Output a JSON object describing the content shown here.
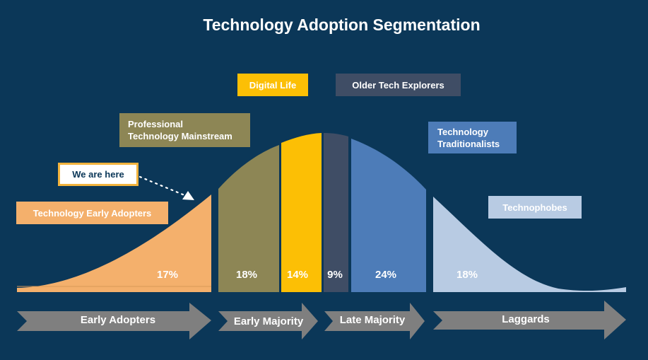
{
  "title": "Technology Adoption Segmentation",
  "segment_labels": {
    "digital_life": "Digital Life",
    "older_tech_explorers": "Older Tech Explorers",
    "professional_mainstream_line1": "Professional",
    "professional_mainstream_line2": "Technology Mainstream",
    "traditionalists_line1": "Technology",
    "traditionalists_line2": "Traditionalists",
    "technophobes": "Technophobes",
    "early_adopters_tech": "Technology Early Adopters",
    "we_are_here": "We are here"
  },
  "colors": {
    "background": "#0b3758",
    "early_adopters": "#f4b06c",
    "professional_mainstream": "#8d8655",
    "digital_life": "#fcbf05",
    "older_tech_explorers": "#3f4d65",
    "traditionalists": "#4d7cb8",
    "technophobes": "#b8cbe3",
    "arrow": "#7f7f7f"
  },
  "chart_data": {
    "type": "area",
    "title": "Technology Adoption Segmentation",
    "segments": [
      {
        "name": "Technology Early Adopters",
        "percent": 17,
        "label": "17%"
      },
      {
        "name": "Professional Technology Mainstream",
        "percent": 18,
        "label": "18%"
      },
      {
        "name": "Digital Life",
        "percent": 14,
        "label": "14%"
      },
      {
        "name": "Older Tech Explorers",
        "percent": 9,
        "label": "9%"
      },
      {
        "name": "Technology Traditionalists",
        "percent": 24,
        "label": "24%"
      },
      {
        "name": "Technophobes",
        "percent": 18,
        "label": "18%"
      }
    ],
    "phases": [
      "Early Adopters",
      "Early Majority",
      "Late Majority",
      "Laggards"
    ]
  }
}
